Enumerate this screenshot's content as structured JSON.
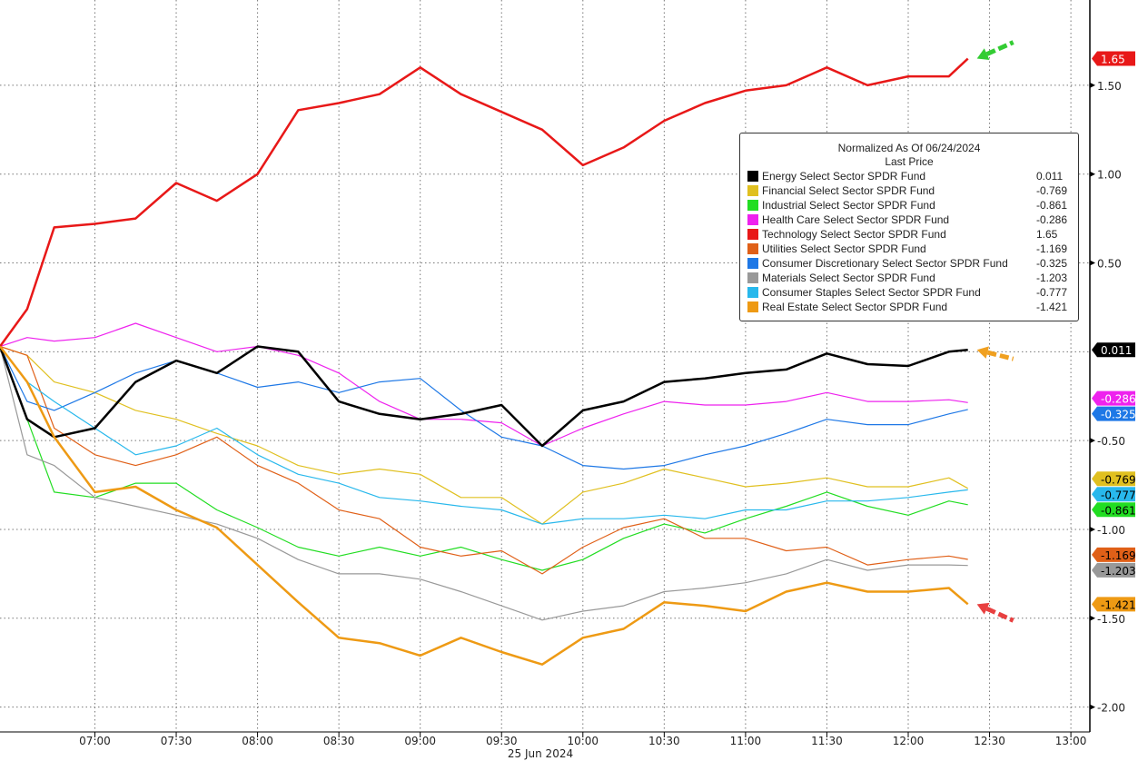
{
  "chart_data": {
    "type": "line",
    "title": "Normalized As Of 06/24/2024",
    "subtitle": "Last Price",
    "xlabel": "25 Jun 2024",
    "ylabel": "",
    "x_ticks": [
      "07:00",
      "07:30",
      "08:00",
      "08:30",
      "09:00",
      "09:30",
      "10:00",
      "10:30",
      "11:00",
      "11:30",
      "12:00",
      "12:30",
      "13:00"
    ],
    "y_ticks": [
      1.5,
      1.0,
      0.5,
      -0.5,
      -1.0,
      -1.5,
      -2.0
    ],
    "y_tick_labels": [
      "1.50",
      "1.00",
      "0.50",
      "-0.50",
      "-1.00",
      "-1.50",
      "-2.00"
    ],
    "xlim": [
      "06:25",
      "13:07"
    ],
    "ylim": [
      -2.14,
      1.98
    ],
    "grid": true,
    "legend_position": "top-right",
    "x": [
      "06:25",
      "06:35",
      "06:45",
      "07:00",
      "07:15",
      "07:30",
      "07:45",
      "08:00",
      "08:15",
      "08:30",
      "08:45",
      "09:00",
      "09:15",
      "09:30",
      "09:45",
      "10:00",
      "10:15",
      "10:30",
      "10:45",
      "11:00",
      "11:15",
      "11:30",
      "11:45",
      "12:00",
      "12:15",
      "12:22"
    ],
    "series": [
      {
        "name": "Energy Select Sector SPDR Fund",
        "color": "#000000",
        "last": "0.011",
        "tag_text": "#ffffff",
        "width": 2.5,
        "values": [
          0.03,
          -0.38,
          -0.48,
          -0.43,
          -0.17,
          -0.05,
          -0.12,
          0.03,
          0.0,
          -0.28,
          -0.35,
          -0.38,
          -0.35,
          -0.3,
          -0.53,
          -0.33,
          -0.28,
          -0.17,
          -0.15,
          -0.12,
          -0.1,
          -0.01,
          -0.07,
          -0.08,
          0.0,
          0.011
        ]
      },
      {
        "name": "Financial Select Sector SPDR Fund",
        "color": "#e0c020",
        "last": "-0.769",
        "tag_text": "#000000",
        "width": 1.2,
        "values": [
          0.03,
          -0.02,
          -0.17,
          -0.23,
          -0.33,
          -0.38,
          -0.46,
          -0.53,
          -0.64,
          -0.69,
          -0.66,
          -0.69,
          -0.82,
          -0.82,
          -0.97,
          -0.79,
          -0.74,
          -0.66,
          -0.71,
          -0.76,
          -0.74,
          -0.71,
          -0.76,
          -0.76,
          -0.71,
          -0.769
        ]
      },
      {
        "name": "Industrial Select Sector SPDR Fund",
        "color": "#22dd22",
        "last": "-0.861",
        "tag_text": "#000000",
        "width": 1.2,
        "values": [
          0.03,
          -0.38,
          -0.79,
          -0.82,
          -0.74,
          -0.74,
          -0.89,
          -0.99,
          -1.1,
          -1.15,
          -1.1,
          -1.15,
          -1.1,
          -1.17,
          -1.23,
          -1.17,
          -1.05,
          -0.97,
          -1.02,
          -0.94,
          -0.87,
          -0.79,
          -0.87,
          -0.92,
          -0.84,
          -0.861
        ]
      },
      {
        "name": "Health Care Select Sector SPDR Fund",
        "color": "#ee22ee",
        "last": "-0.286",
        "tag_text": "#ffffff",
        "width": 1.2,
        "values": [
          0.03,
          0.08,
          0.06,
          0.08,
          0.16,
          0.08,
          0.0,
          0.03,
          -0.02,
          -0.12,
          -0.28,
          -0.38,
          -0.38,
          -0.4,
          -0.53,
          -0.43,
          -0.35,
          -0.28,
          -0.3,
          -0.3,
          -0.28,
          -0.23,
          -0.28,
          -0.28,
          -0.27,
          -0.286
        ]
      },
      {
        "name": "Technology Select Sector SPDR Fund",
        "color": "#e81818",
        "last": "1.65",
        "tag_text": "#ffffff",
        "width": 2.5,
        "values": [
          0.03,
          0.24,
          0.7,
          0.72,
          0.75,
          0.95,
          0.85,
          1.0,
          1.36,
          1.4,
          1.45,
          1.6,
          1.45,
          1.35,
          1.25,
          1.05,
          1.15,
          1.3,
          1.4,
          1.47,
          1.5,
          1.6,
          1.5,
          1.55,
          1.55,
          1.65
        ]
      },
      {
        "name": "Utilities Select Sector SPDR Fund",
        "color": "#e06018",
        "last": "-1.169",
        "tag_text": "#000000",
        "width": 1.2,
        "values": [
          0.03,
          -0.02,
          -0.43,
          -0.58,
          -0.64,
          -0.58,
          -0.48,
          -0.64,
          -0.74,
          -0.89,
          -0.94,
          -1.1,
          -1.15,
          -1.12,
          -1.25,
          -1.1,
          -0.99,
          -0.94,
          -1.05,
          -1.05,
          -1.12,
          -1.1,
          -1.2,
          -1.17,
          -1.15,
          -1.169
        ]
      },
      {
        "name": "Consumer Discretionary Select Sector SPDR Fund",
        "color": "#1e78e6",
        "last": "-0.325",
        "tag_text": "#ffffff",
        "width": 1.2,
        "values": [
          0.03,
          -0.28,
          -0.33,
          -0.23,
          -0.12,
          -0.05,
          -0.12,
          -0.2,
          -0.17,
          -0.23,
          -0.17,
          -0.15,
          -0.33,
          -0.48,
          -0.53,
          -0.64,
          -0.66,
          -0.64,
          -0.58,
          -0.53,
          -0.46,
          -0.38,
          -0.41,
          -0.41,
          -0.35,
          -0.325
        ]
      },
      {
        "name": "Materials Select Sector SPDR Fund",
        "color": "#999999",
        "last": "-1.203",
        "tag_text": "#000000",
        "width": 1.2,
        "values": [
          0.03,
          -0.58,
          -0.64,
          -0.82,
          -0.87,
          -0.92,
          -0.97,
          -1.05,
          -1.17,
          -1.25,
          -1.25,
          -1.28,
          -1.35,
          -1.43,
          -1.51,
          -1.46,
          -1.43,
          -1.35,
          -1.33,
          -1.3,
          -1.25,
          -1.17,
          -1.23,
          -1.2,
          -1.2,
          -1.203
        ]
      },
      {
        "name": "Consumer Staples Select Sector SPDR Fund",
        "color": "#28b8ec",
        "last": "-0.777",
        "tag_text": "#000000",
        "width": 1.2,
        "values": [
          0.03,
          -0.17,
          -0.28,
          -0.43,
          -0.58,
          -0.53,
          -0.43,
          -0.58,
          -0.69,
          -0.74,
          -0.82,
          -0.84,
          -0.87,
          -0.89,
          -0.97,
          -0.94,
          -0.94,
          -0.92,
          -0.94,
          -0.89,
          -0.89,
          -0.84,
          -0.84,
          -0.82,
          -0.79,
          -0.777
        ]
      },
      {
        "name": "Real Estate Select Sector SPDR Fund",
        "color": "#ee9a14",
        "last": "-1.421",
        "tag_text": "#000000",
        "width": 2.5,
        "values": [
          0.03,
          -0.17,
          -0.48,
          -0.79,
          -0.76,
          -0.89,
          -0.99,
          -1.2,
          -1.41,
          -1.61,
          -1.64,
          -1.71,
          -1.61,
          -1.69,
          -1.76,
          -1.61,
          -1.56,
          -1.41,
          -1.43,
          -1.46,
          -1.35,
          -1.3,
          -1.35,
          -1.35,
          -1.33,
          -1.421
        ]
      }
    ],
    "axis_tags_order": [
      "Technology Select Sector SPDR Fund",
      "Energy Select Sector SPDR Fund",
      "Consumer Discretionary Select Sector SPDR Fund",
      "Health Care Select Sector SPDR Fund",
      "Consumer Staples Select Sector SPDR Fund",
      "Financial Select Sector SPDR Fund",
      "Industrial Select Sector SPDR Fund",
      "Materials Select Sector SPDR Fund",
      "Utilities Select Sector SPDR Fund",
      "Real Estate Select Sector SPDR Fund"
    ],
    "annotations": [
      {
        "type": "arrow",
        "color": "#33cc33",
        "target": "Technology Select Sector SPDR Fund"
      },
      {
        "type": "arrow",
        "color": "#f0a020",
        "target": "Energy Select Sector SPDR Fund"
      },
      {
        "type": "arrow",
        "color": "#e84040",
        "target": "Real Estate Select Sector SPDR Fund"
      }
    ]
  }
}
